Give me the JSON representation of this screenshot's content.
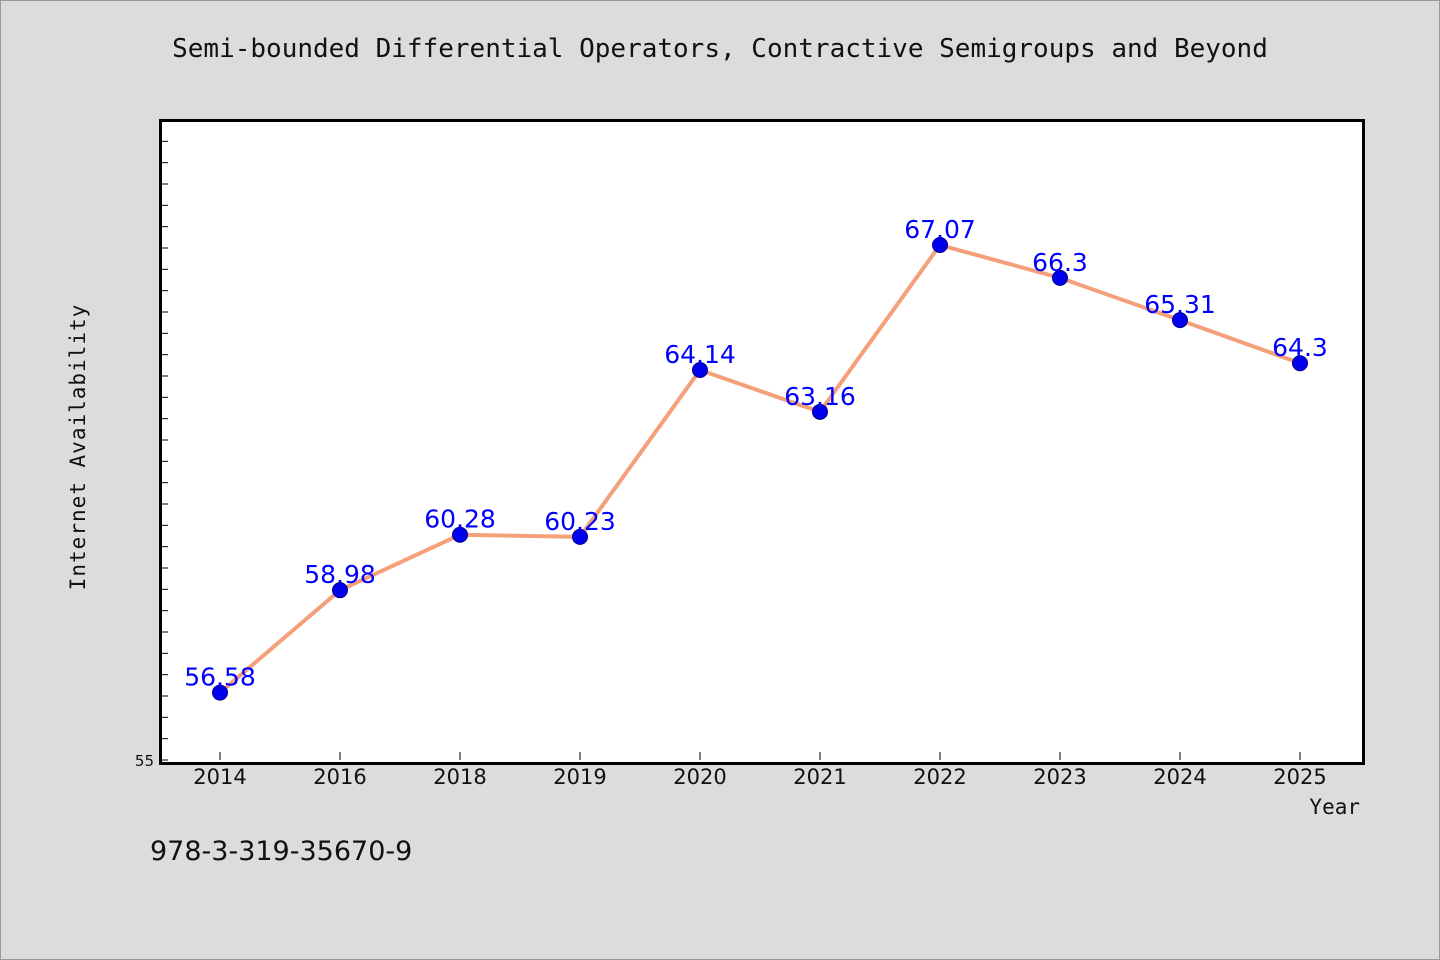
{
  "chart_data": {
    "type": "line",
    "title": "Semi-bounded Differential Operators, Contractive Semigroups and Beyond",
    "xlabel": "Year",
    "ylabel": "Internet Availability",
    "categories": [
      "2014",
      "2016",
      "2018",
      "2019",
      "2020",
      "2021",
      "2022",
      "2023",
      "2024",
      "2025"
    ],
    "series": [
      {
        "values": [
          56.58,
          58.98,
          60.28,
          60.23,
          64.14,
          63.16,
          67.07,
          66.3,
          65.31,
          64.3
        ],
        "data_labels": [
          "56.58",
          "58.98",
          "60.28",
          "60.23",
          "64.14",
          "63.16",
          "67.07",
          "66.3",
          "65.31",
          "64.3"
        ]
      }
    ],
    "ylim": [
      55,
      70
    ],
    "ytick_labels": [
      "55"
    ],
    "grid": false,
    "colors": {
      "line": "#f4a07a",
      "marker": "#0000ee",
      "data_label": "#0000ff",
      "background": "#dcdcdc",
      "plot_background": "#ffffff"
    }
  },
  "footer": {
    "isbn": "978-3-319-35670-9"
  }
}
